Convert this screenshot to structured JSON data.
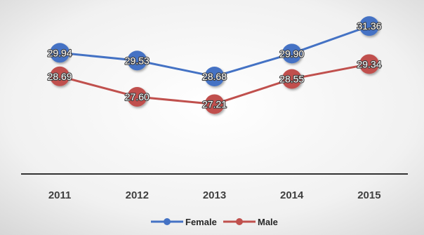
{
  "chart_data": {
    "type": "line",
    "categories": [
      "2011",
      "2012",
      "2013",
      "2014",
      "2015"
    ],
    "series": [
      {
        "name": "Female",
        "color": "#4472C4",
        "values": [
          29.94,
          29.53,
          28.68,
          29.9,
          31.36
        ],
        "labels": [
          "29.94",
          "29.53",
          "28.68",
          "29.90",
          "31.36"
        ]
      },
      {
        "name": "Male",
        "color": "#C0504D",
        "values": [
          28.69,
          27.6,
          27.21,
          28.55,
          29.34
        ],
        "labels": [
          "28.69",
          "27.60",
          "27.21",
          "28.55",
          "29.34"
        ]
      }
    ],
    "title": "",
    "xlabel": "",
    "ylabel": "",
    "y_axis_visible": false,
    "ylim": [
      23.5,
      32.0
    ],
    "grid": false,
    "legend": "bottom",
    "data_labels": true,
    "background": "gradient-gray"
  }
}
